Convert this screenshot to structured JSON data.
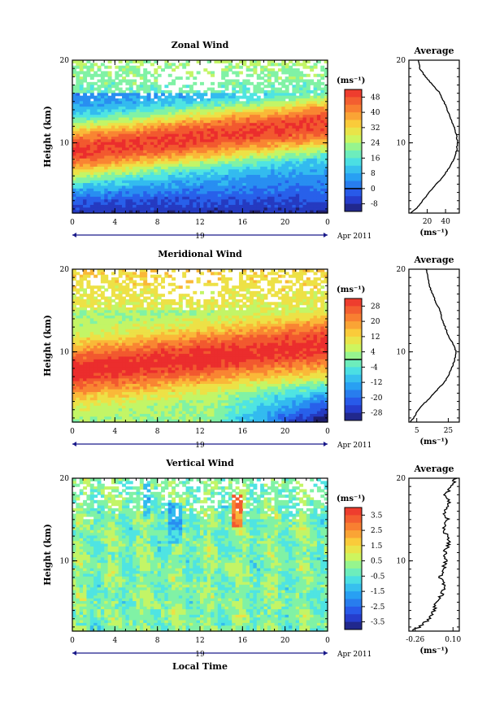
{
  "chart_data": [
    {
      "type": "heatmap",
      "title": "Zonal Wind",
      "ylabel": "Height (km)",
      "xticks": [
        "0",
        "4",
        "8",
        "12",
        "16",
        "20",
        "0"
      ],
      "yticks": [
        "10",
        "20"
      ],
      "xlim": [
        0,
        24
      ],
      "ylim": [
        1.5,
        20
      ],
      "date_label": "19",
      "date_right": "Apr 2011",
      "colorbar_unit": "(ms⁻¹)",
      "colorbar_ticks": [
        "48",
        "40",
        "32",
        "24",
        "16",
        "8",
        "0",
        "-8"
      ],
      "colorbar_range": [
        -12,
        52
      ],
      "zero_line_value": 0,
      "profile": {
        "title": "Average",
        "xticks": [
          "20",
          "40"
        ],
        "xlim": [
          0,
          55
        ],
        "xunit": "(ms⁻¹)",
        "heights": [
          1.5,
          2,
          3,
          4,
          5,
          6,
          7,
          8,
          9,
          10,
          11,
          12,
          13,
          14,
          15,
          16,
          17,
          18,
          19,
          20
        ],
        "values": [
          2,
          8,
          15,
          22,
          30,
          38,
          44,
          49,
          52,
          53,
          52,
          49,
          45,
          42,
          38,
          34,
          26,
          18,
          12,
          10
        ]
      }
    },
    {
      "type": "heatmap",
      "title": "Meridional Wind",
      "ylabel": "Height (km)",
      "xticks": [
        "0",
        "4",
        "8",
        "12",
        "16",
        "20",
        "0"
      ],
      "yticks": [
        "10",
        "20"
      ],
      "xlim": [
        0,
        24
      ],
      "ylim": [
        1.5,
        20
      ],
      "date_label": "19",
      "date_right": "Apr 2011",
      "colorbar_unit": "(ms⁻¹)",
      "colorbar_ticks": [
        "28",
        "20",
        "12",
        "4",
        "-4",
        "-12",
        "-20",
        "-28"
      ],
      "colorbar_range": [
        -32,
        32
      ],
      "zero_line_value": 0,
      "profile": {
        "title": "Average",
        "xticks": [
          "5",
          "25"
        ],
        "xlim": [
          0,
          32
        ],
        "xunit": "(ms⁻¹)",
        "heights": [
          1.5,
          2,
          3,
          4,
          5,
          6,
          7,
          8,
          9,
          10,
          11,
          12,
          13,
          14,
          15,
          16,
          17,
          18,
          19,
          20
        ],
        "values": [
          1,
          3,
          6,
          11,
          16,
          21,
          25,
          27,
          29,
          30,
          28,
          25,
          23,
          21,
          20,
          17,
          15,
          13,
          12,
          11
        ]
      }
    },
    {
      "type": "heatmap",
      "title": "Vertical Wind",
      "ylabel": "Height (km)",
      "xlabel": "Local Time",
      "xticks": [
        "0",
        "4",
        "8",
        "12",
        "16",
        "20",
        "0"
      ],
      "yticks": [
        "10",
        "20"
      ],
      "xlim": [
        0,
        24
      ],
      "ylim": [
        1.5,
        20
      ],
      "date_label": "19",
      "date_right": "Apr 2011",
      "colorbar_unit": "(ms⁻¹)",
      "colorbar_ticks": [
        "3.5",
        "2.5",
        "1.5",
        "0.5",
        "-0.5",
        "-1.5",
        "-2.5",
        "-3.5"
      ],
      "colorbar_range": [
        -4,
        4
      ],
      "zero_line_value": null,
      "profile": {
        "title": "Average",
        "xticks": [
          "-0.26",
          "0.10"
        ],
        "xlim": [
          -0.32,
          0.16
        ],
        "xunit": "(ms⁻¹)",
        "heights": [
          1.5,
          2,
          3,
          4,
          5,
          6,
          7,
          8,
          9,
          10,
          11,
          12,
          13,
          14,
          15,
          16,
          17,
          18,
          19,
          20
        ],
        "values": [
          -0.3,
          -0.22,
          -0.12,
          -0.08,
          -0.06,
          0.0,
          0.02,
          -0.02,
          0.01,
          0.03,
          0.02,
          0.06,
          0.04,
          0.0,
          0.05,
          0.01,
          0.07,
          0.03,
          0.09,
          0.12
        ]
      }
    }
  ]
}
